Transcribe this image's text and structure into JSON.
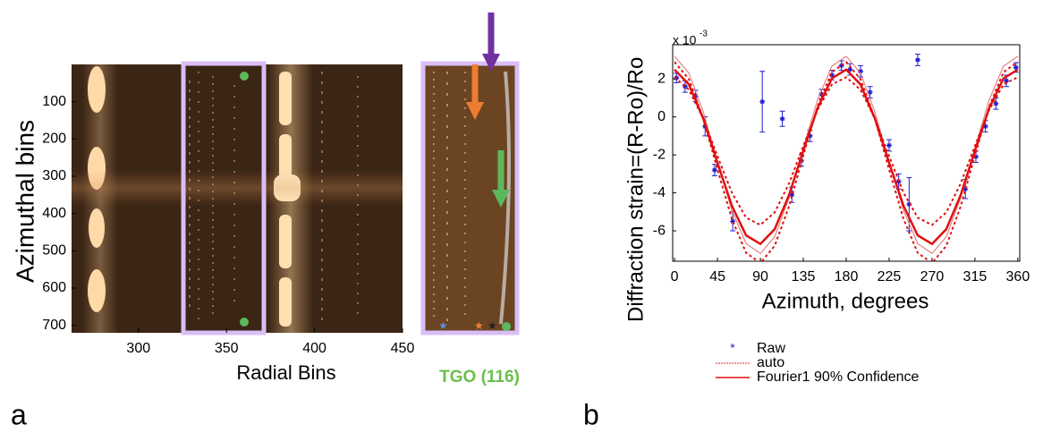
{
  "chart_data": [
    {
      "type": "image",
      "panel_label": "a",
      "x_label": "Radial Bins",
      "y_label": "Azimuthal bins",
      "annotation": "TGO (116)",
      "xlim": [
        262,
        450
      ],
      "xticks": [
        300,
        350,
        400,
        450
      ],
      "ylim": [
        0,
        720
      ],
      "yticks": [
        100,
        200,
        300,
        400,
        500,
        600,
        700
      ]
    },
    {
      "type": "scatter",
      "panel_label": "b",
      "x_label": "Azimuth, degrees",
      "y_label": "Diffraction strain=(R-Ro)/Ro",
      "y_multiplier": "x 10",
      "y_multiplier_exp": "-3",
      "xlim": [
        -2,
        362
      ],
      "xticks": [
        0,
        45,
        90,
        135,
        180,
        225,
        270,
        315,
        360
      ],
      "ylim": [
        -7.6,
        3.8
      ],
      "yticks": [
        -6,
        -4,
        -2,
        0,
        2
      ],
      "series": [
        {
          "name": "Raw",
          "color": "#1f1fd0",
          "kind": "points",
          "x": [
            2,
            11,
            22,
            32,
            42,
            61,
            92,
            113,
            123,
            133,
            142,
            154,
            165,
            175,
            184,
            195,
            205,
            225,
            235,
            246,
            255,
            305,
            316,
            326,
            337,
            348,
            358
          ],
          "values": [
            2.05,
            1.6,
            1.1,
            -0.5,
            -2.8,
            -5.5,
            0.8,
            -0.1,
            -4.1,
            -2.3,
            -1.0,
            1.2,
            2.2,
            2.7,
            2.5,
            2.4,
            1.3,
            -1.5,
            -3.4,
            -4.6,
            3.0,
            -3.8,
            -2.1,
            -0.5,
            0.7,
            1.9,
            2.6
          ],
          "errors": [
            0.25,
            0.3,
            0.3,
            0.5,
            0.3,
            0.5,
            1.6,
            0.4,
            0.4,
            0.3,
            0.3,
            0.25,
            0.25,
            0.25,
            0.3,
            0.3,
            0.3,
            0.3,
            0.4,
            1.4,
            0.3,
            0.5,
            0.3,
            0.3,
            0.3,
            0.3,
            0.25
          ]
        },
        {
          "name": "auto",
          "color": "#e07070",
          "kind": "line",
          "x": [
            0,
            15,
            30,
            45,
            60,
            75,
            90,
            105,
            120,
            135,
            150,
            165,
            180,
            195,
            210,
            225,
            240,
            255,
            270,
            285,
            300,
            315,
            330,
            345,
            360
          ],
          "values": [
            3.19,
            2.31,
            0.28,
            -2.36,
            -4.91,
            -6.67,
            -7.19,
            -6.31,
            -4.28,
            -1.64,
            0.91,
            2.67,
            3.19,
            2.31,
            0.28,
            -2.36,
            -4.91,
            -6.67,
            -7.19,
            -6.31,
            -4.28,
            -1.64,
            0.91,
            2.67,
            3.19
          ]
        },
        {
          "name": "Fourier1 90% Confidence",
          "color": "#e01010",
          "kind": "line",
          "x": [
            0,
            15,
            30,
            45,
            60,
            75,
            90,
            105,
            120,
            135,
            150,
            165,
            180,
            195,
            210,
            225,
            240,
            255,
            270,
            285,
            300,
            315,
            330,
            345,
            360
          ],
          "values": [
            2.49,
            1.71,
            -0.08,
            -2.42,
            -4.67,
            -6.24,
            -6.69,
            -5.91,
            -4.12,
            -1.78,
            0.47,
            2.03,
            2.49,
            1.71,
            -0.08,
            -2.42,
            -4.67,
            -6.24,
            -6.69,
            -5.91,
            -4.12,
            -1.78,
            0.47,
            2.03,
            2.49
          ],
          "bound_1": [
            2.09,
            1.43,
            -0.09,
            -2.07,
            -3.98,
            -5.31,
            -5.69,
            -5.03,
            -3.51,
            -1.53,
            0.38,
            1.71,
            2.09,
            1.43,
            -0.09,
            -2.07,
            -3.98,
            -5.31,
            -5.69,
            -5.03,
            -3.51,
            -1.53,
            0.38,
            1.71,
            2.09
          ],
          "bound_2": [
            2.89,
            1.99,
            -0.08,
            -2.77,
            -5.36,
            -7.16,
            -7.69,
            -6.79,
            -4.72,
            -2.03,
            0.56,
            2.36,
            2.89,
            1.99,
            -0.08,
            -2.77,
            -5.36,
            -7.16,
            -7.69,
            -6.79,
            -4.72,
            -2.03,
            0.56,
            2.36,
            2.89
          ]
        }
      ]
    }
  ]
}
